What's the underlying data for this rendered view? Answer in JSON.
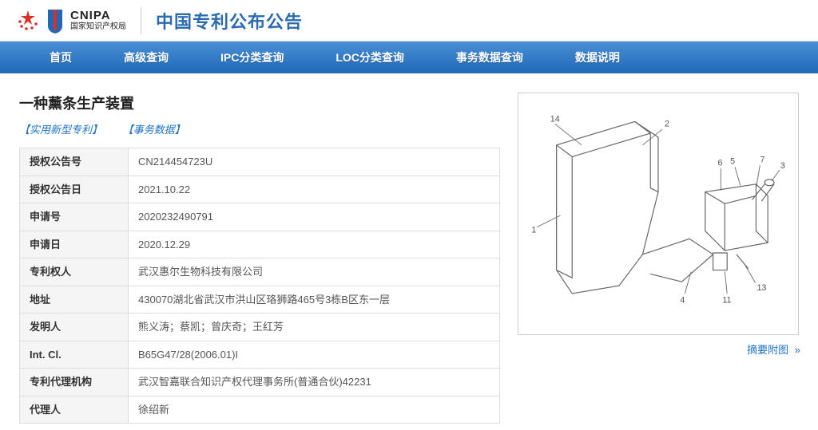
{
  "header": {
    "logo_top": "CNIPA",
    "logo_sub": "国家知识产权局",
    "site_title": "中国专利公布公告",
    "star_color": "#d93025",
    "shield_fill": "#1f69b7"
  },
  "nav": {
    "items": [
      "首页",
      "高级查询",
      "IPC分类查询",
      "LOC分类查询",
      "事务数据查询",
      "数据说明"
    ],
    "gradient_top": "#4a8fd6",
    "gradient_bottom": "#1f69b7"
  },
  "patent": {
    "title": "一种薰条生产装置",
    "tags": [
      "【实用新型专利】",
      "【事务数据】"
    ],
    "rows": [
      {
        "label": "授权公告号",
        "value": "CN214454723U"
      },
      {
        "label": "授权公告日",
        "value": "2021.10.22"
      },
      {
        "label": "申请号",
        "value": "2020232490791"
      },
      {
        "label": "申请日",
        "value": "2020.12.29"
      },
      {
        "label": "专利权人",
        "value": "武汉惠尔生物科技有限公司"
      },
      {
        "label": "地址",
        "value": "430070湖北省武汉市洪山区珞狮路465号3栋B区东一层"
      },
      {
        "label": "发明人",
        "value": "熊义涛；蔡凯；曾庆奇；王红芳"
      },
      {
        "label": "Int. Cl.",
        "value": "B65G47/28(2006.01)I"
      },
      {
        "label": "专利代理机构",
        "value": "武汉智嘉联合知识产权代理事务所(普通合伙)42231"
      },
      {
        "label": "代理人",
        "value": "徐绍新"
      }
    ]
  },
  "figure": {
    "caption": "摘要附图",
    "labels": [
      "1",
      "2",
      "3",
      "4",
      "5",
      "6",
      "7",
      "11",
      "13",
      "14"
    ],
    "stroke": "#666666",
    "label_fontsize": 11,
    "aspect_ratio": "1.15"
  },
  "colors": {
    "link": "#1f73c4",
    "border": "#dcdcdc",
    "row_label_bg": "#f5f5f5",
    "text": "#333333",
    "value": "#555555"
  }
}
